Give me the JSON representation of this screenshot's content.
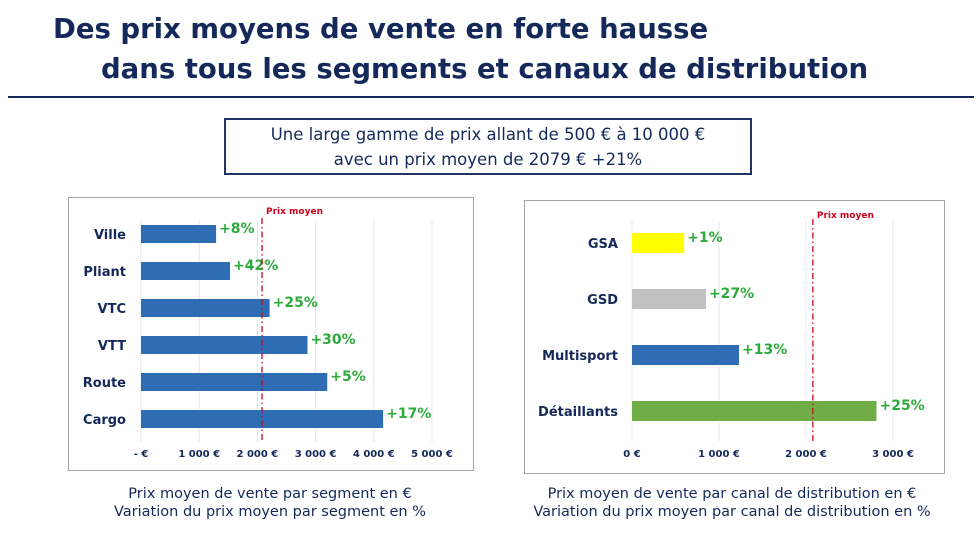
{
  "title_line1": "Des prix moyens de vente en forte hausse",
  "title_line2": "dans tous les segments et canaux de distribution",
  "callout_line1": "Une large gamme de prix allant de 500 € à 10 000 €",
  "callout_line2": "avec un prix moyen de 2079 € +21%",
  "chart_data": [
    {
      "type": "bar",
      "orientation": "horizontal",
      "categories": [
        "Ville",
        "Pliant",
        "VTC",
        "VTT",
        "Route",
        "Cargo"
      ],
      "values": [
        1290,
        1530,
        2210,
        2860,
        3200,
        4160
      ],
      "data_labels": [
        "+8%",
        "+42%",
        "+25%",
        "+30%",
        "+5%",
        "+17%"
      ],
      "xlim": [
        0,
        5000
      ],
      "x_ticks": [
        0,
        1000,
        2000,
        3000,
        4000,
        5000
      ],
      "x_tick_labels": [
        "-   €",
        "1 000 €",
        "2 000 €",
        "3 000 €",
        "4 000 €",
        "5 000 €"
      ],
      "reference_line": {
        "value": 2079,
        "label": "Prix moyen"
      },
      "grid": true,
      "colors": {
        "bars": [
          "#2e6db4"
        ],
        "labels": "#2eaa3c",
        "reference": "#d0021b",
        "grid": "#dce8f5"
      },
      "caption": [
        "Prix moyen de vente par segment en €",
        "Variation du prix moyen par segment en %"
      ]
    },
    {
      "type": "bar",
      "orientation": "horizontal",
      "categories": [
        "GSA",
        "GSD",
        "Multisport",
        "Détaillants"
      ],
      "values": [
        600,
        850,
        1230,
        2810
      ],
      "data_labels": [
        "+1%",
        "+27%",
        "+13%",
        "+25%"
      ],
      "xlim": [
        0,
        3000
      ],
      "x_ticks": [
        0,
        1000,
        2000,
        3000
      ],
      "x_tick_labels": [
        "0 €",
        "1 000 €",
        "2 000 €",
        "3 000 €"
      ],
      "reference_line": {
        "value": 2079,
        "label": "Prix moyen"
      },
      "grid": true,
      "colors": {
        "bars": [
          "#ffff00",
          "#c0c0c0",
          "#2e6db4",
          "#70ad47"
        ],
        "labels": "#2eaa3c",
        "reference": "#d0021b",
        "grid": "#dce8f5"
      },
      "caption": [
        "Prix moyen de vente par canal de distribution en €",
        "Variation du prix moyen par canal de distribution en %"
      ]
    }
  ]
}
